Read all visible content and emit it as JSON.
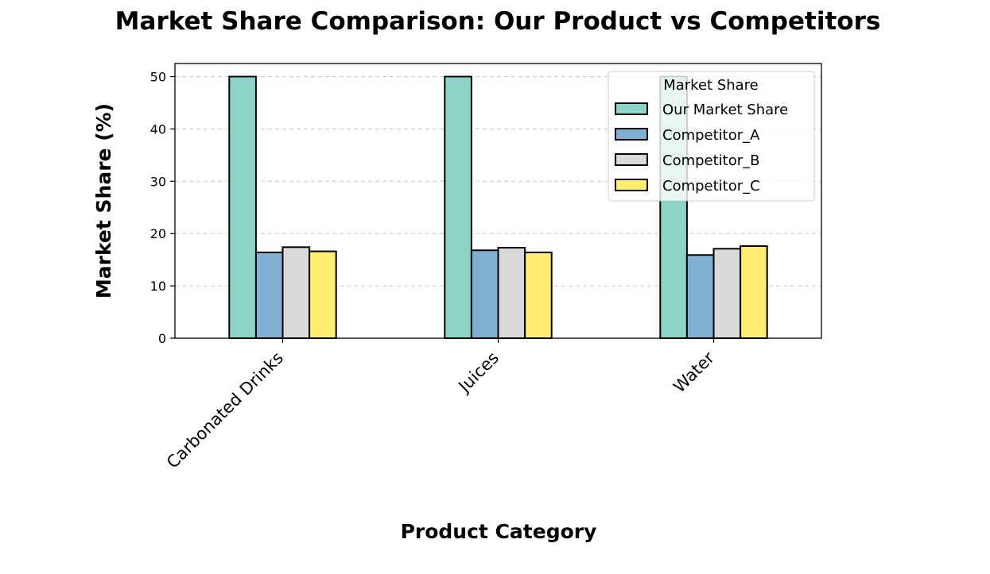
{
  "chart_data": {
    "type": "bar",
    "title": "Market Share Comparison: Our Product vs Competitors",
    "xlabel": "Product Category",
    "ylabel": "Market Share (%)",
    "categories": [
      "Carbonated Drinks",
      "Juices",
      "Water"
    ],
    "ylim": [
      0,
      52.5
    ],
    "yticks": [
      0,
      10,
      20,
      30,
      40,
      50
    ],
    "grid": "y-dashed",
    "legend": {
      "title": "Market Share",
      "placement": "top-right"
    },
    "series": [
      {
        "name": "Our Market Share",
        "values": [
          50,
          50,
          50
        ],
        "color": "#8dd3c7"
      },
      {
        "name": "Competitor_A",
        "values": [
          16.4,
          16.8,
          15.9
        ],
        "color": "#80b1d3"
      },
      {
        "name": "Competitor_B",
        "values": [
          17.4,
          17.3,
          17.1
        ],
        "color": "#d9d9d9"
      },
      {
        "name": "Competitor_C",
        "values": [
          16.6,
          16.4,
          17.6
        ],
        "color": "#ffed6f"
      }
    ]
  }
}
